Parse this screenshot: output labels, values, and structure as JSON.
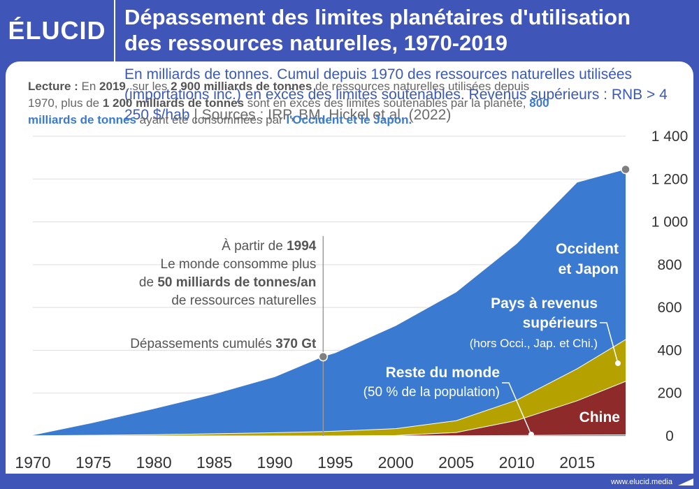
{
  "header": {
    "logo": "ÉLUCID",
    "title_line1": "Dépassement des limites planétaires d'utilisation",
    "title_line2": "des ressources naturelles, 1970-2019"
  },
  "subtitle": {
    "main": "En milliards de tonnes. Cumul depuis 1970 des ressources naturelles utilisées (importations inc.) en excès des limites soutenables. Revenus supérieurs : RNB > 4 250 $/hab",
    "separator": "|",
    "sources": "Sources : IRP, BM, Hickel et al. (2022)"
  },
  "lecture": {
    "p1": "Lecture :",
    "p2": " En ",
    "p3": "2019",
    "p4": ", sur les ",
    "p5": "2 900 milliards de tonnes",
    "p6": " de ressources naturelles utilisées depuis 1970, plus de ",
    "p7": "1 200 milliards de tonnes",
    "p8": " sont en excés des limites soutenables par la planète, ",
    "p9": "800 milliards de tonnes",
    "p10": " ayant été consommées par ",
    "p11": "l'Occident et le Japon."
  },
  "annotation_1994": {
    "l1_a": "À partir de ",
    "l1_b": "1994",
    "l2": "Le monde consomme plus",
    "l3_a": "de ",
    "l3_b": "50 milliards de tonnes/an",
    "l4": "de ressources naturelles"
  },
  "annotation_370": {
    "a": "Dépassements cumulés ",
    "b": "370 Gt"
  },
  "labels": {
    "occident_l1": "Occident",
    "occident_l2": "et Japon",
    "pays_l1": "Pays à revenus",
    "pays_l2": "supérieurs",
    "pays_l3": "(hors Occi., Jap. et Chi.)",
    "reste_l1": "Reste du monde",
    "reste_l2": "(50 % de la population)",
    "chine": "Chine"
  },
  "footer": {
    "site": "www.elucid.media"
  },
  "colors": {
    "background": "#3f55b8",
    "occident": "#3b7ad1",
    "pays": "#b5a200",
    "chine": "#8e2a2a",
    "reste": "#3aa84a",
    "marker": "#7f7f7f"
  },
  "chart_data": {
    "type": "area",
    "stacked": true,
    "x": [
      1970,
      1975,
      1980,
      1985,
      1990,
      1994,
      1995,
      2000,
      2005,
      2010,
      2015,
      2019
    ],
    "series": [
      {
        "name": "Reste du monde",
        "values": [
          0,
          0,
          0,
          0,
          0,
          0,
          0,
          0,
          1,
          2,
          4,
          5
        ]
      },
      {
        "name": "Chine",
        "values": [
          0,
          0,
          0,
          0,
          0,
          0,
          0,
          2,
          15,
          70,
          160,
          250
        ]
      },
      {
        "name": "Pays à revenus supérieurs",
        "values": [
          1,
          3,
          6,
          10,
          15,
          20,
          22,
          32,
          55,
          95,
          150,
          195
        ]
      },
      {
        "name": "Occident et Japon",
        "values": [
          2,
          58,
          120,
          185,
          260,
          350,
          365,
          480,
          600,
          730,
          870,
          795
        ]
      }
    ],
    "totals_markers": [
      {
        "x": 1994,
        "y": 370
      },
      {
        "x": 2019,
        "y": 1245
      }
    ],
    "x_ticks": [
      1970,
      1975,
      1980,
      1985,
      1990,
      1995,
      2000,
      2005,
      2010,
      2015
    ],
    "y_ticks": [
      0,
      200,
      400,
      600,
      800,
      1000,
      1200,
      1400
    ],
    "y_tick_labels": [
      "0",
      "200",
      "400",
      "600",
      "800",
      "1 000",
      "1 200",
      "1 400"
    ],
    "xlim": [
      1970,
      2019
    ],
    "ylim": [
      0,
      1400
    ],
    "grid": true
  }
}
